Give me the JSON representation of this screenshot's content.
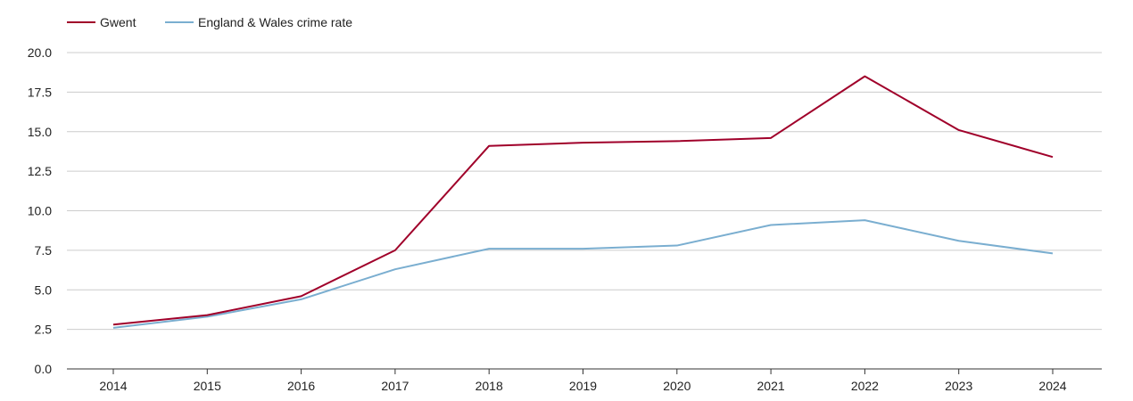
{
  "chart_data": {
    "type": "line",
    "title": "",
    "xlabel": "",
    "ylabel": "",
    "x": [
      "2014",
      "2015",
      "2016",
      "2017",
      "2018",
      "2019",
      "2020",
      "2021",
      "2022",
      "2023",
      "2024"
    ],
    "ylim": [
      0,
      20
    ],
    "yticks": [
      "0.0",
      "2.5",
      "5.0",
      "7.5",
      "10.0",
      "12.5",
      "15.0",
      "17.5",
      "20.0"
    ],
    "grid": true,
    "legend_position": "top-left",
    "series": [
      {
        "name": "Gwent",
        "color": "#a0002a",
        "values": [
          2.8,
          3.4,
          4.6,
          7.5,
          14.1,
          14.3,
          14.4,
          14.6,
          18.5,
          15.1,
          13.4
        ]
      },
      {
        "name": "England & Wales crime rate",
        "color": "#7aaed0",
        "values": [
          2.6,
          3.3,
          4.4,
          6.3,
          7.6,
          7.6,
          7.8,
          9.1,
          9.4,
          8.1,
          7.3
        ]
      }
    ]
  }
}
